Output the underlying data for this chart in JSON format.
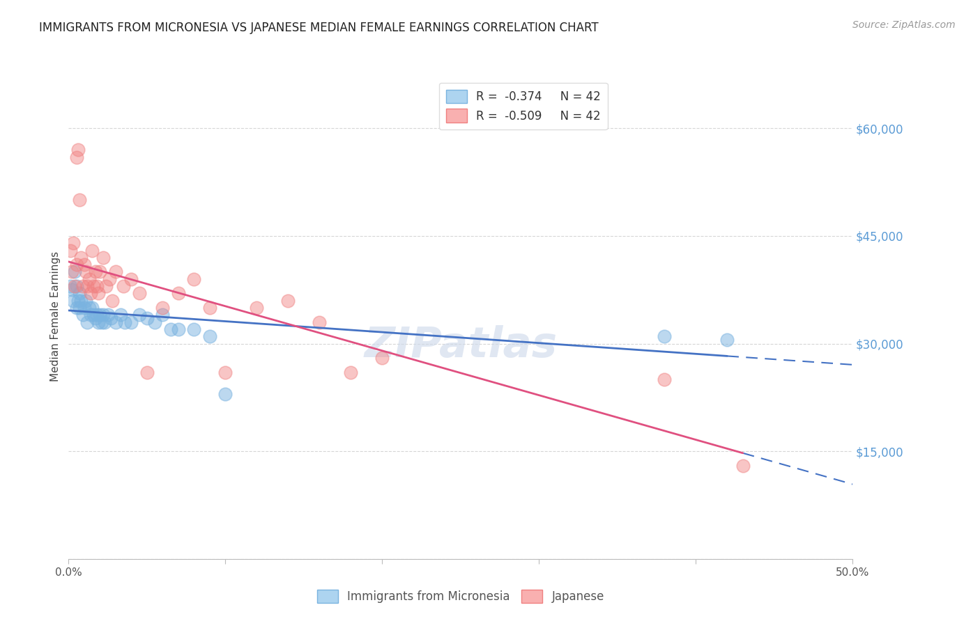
{
  "title": "IMMIGRANTS FROM MICRONESIA VS JAPANESE MEDIAN FEMALE EARNINGS CORRELATION CHART",
  "source": "Source: ZipAtlas.com",
  "ylabel": "Median Female Earnings",
  "right_yticks": [
    0,
    15000,
    30000,
    45000,
    60000
  ],
  "right_yticklabels": [
    "",
    "$15,000",
    "$30,000",
    "$45,000",
    "$60,000"
  ],
  "watermark": "ZIPatlas",
  "legend_labels_bottom": [
    "Immigrants from Micronesia",
    "Japanese"
  ],
  "micronesia_x": [
    0.001,
    0.002,
    0.003,
    0.004,
    0.005,
    0.005,
    0.006,
    0.007,
    0.007,
    0.008,
    0.009,
    0.01,
    0.011,
    0.012,
    0.013,
    0.014,
    0.015,
    0.016,
    0.017,
    0.018,
    0.019,
    0.02,
    0.021,
    0.022,
    0.023,
    0.025,
    0.027,
    0.03,
    0.033,
    0.036,
    0.04,
    0.045,
    0.05,
    0.055,
    0.06,
    0.065,
    0.07,
    0.08,
    0.09,
    0.1,
    0.38,
    0.42
  ],
  "micronesia_y": [
    38000,
    37500,
    36000,
    40000,
    38000,
    35000,
    36000,
    37000,
    35000,
    36000,
    34000,
    35000,
    36000,
    33000,
    35000,
    34000,
    35000,
    34000,
    33500,
    34000,
    33000,
    34000,
    33000,
    34000,
    33000,
    34000,
    33500,
    33000,
    34000,
    33000,
    33000,
    34000,
    33500,
    33000,
    34000,
    32000,
    32000,
    32000,
    31000,
    23000,
    31000,
    30500
  ],
  "japanese_x": [
    0.001,
    0.002,
    0.003,
    0.004,
    0.005,
    0.005,
    0.006,
    0.007,
    0.008,
    0.009,
    0.01,
    0.011,
    0.012,
    0.013,
    0.014,
    0.015,
    0.016,
    0.017,
    0.018,
    0.019,
    0.02,
    0.022,
    0.024,
    0.026,
    0.028,
    0.03,
    0.035,
    0.04,
    0.045,
    0.05,
    0.06,
    0.07,
    0.08,
    0.09,
    0.1,
    0.12,
    0.14,
    0.16,
    0.18,
    0.2,
    0.38,
    0.43
  ],
  "japanese_y": [
    43000,
    40000,
    44000,
    38000,
    41000,
    56000,
    57000,
    50000,
    42000,
    38000,
    41000,
    40000,
    38000,
    39000,
    37000,
    43000,
    38000,
    40000,
    38000,
    37000,
    40000,
    42000,
    38000,
    39000,
    36000,
    40000,
    38000,
    39000,
    37000,
    26000,
    35000,
    37000,
    39000,
    35000,
    26000,
    35000,
    36000,
    33000,
    26000,
    28000,
    25000,
    13000
  ],
  "xlim": [
    0.0,
    0.5
  ],
  "ylim": [
    0,
    67500
  ],
  "xticks": [
    0.0,
    0.1,
    0.2,
    0.3,
    0.4,
    0.5
  ],
  "micronesia_color": "#7ab3e0",
  "japanese_color": "#f08080",
  "trend_micronesia_color": "#4472c4",
  "trend_japanese_color": "#e05080",
  "background_color": "#ffffff",
  "grid_color": "#cccccc",
  "R_mic": -0.374,
  "R_jap": -0.509,
  "N": 42
}
